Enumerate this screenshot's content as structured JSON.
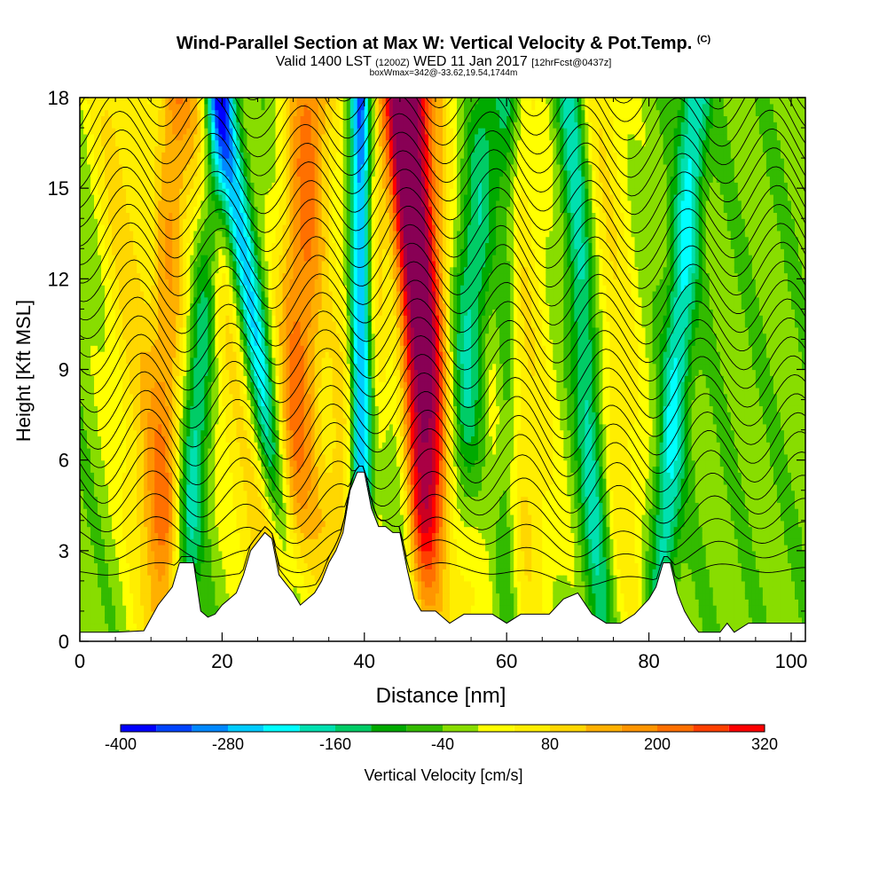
{
  "header": {
    "title_main": "Wind-Parallel Section at Max W: Vertical Velocity & Pot.Temp.",
    "title_tag": "(C)",
    "subtitle_a": "Valid 1400 LST",
    "subtitle_b": "(1200Z)",
    "subtitle_c": "WED 11 Jan 2017",
    "subtitle_d": "[12hrFcst@0437z]",
    "box_line": "boxWmax=342@-33.62,19.54,1744m"
  },
  "chart_data": {
    "type": "heatmap",
    "title": "Wind-Parallel Section at Max W: Vertical Velocity & Pot.Temp.",
    "xlabel": "Distance [nm]",
    "ylabel": "Height [Kft MSL]",
    "xlim": [
      0,
      102
    ],
    "ylim": [
      0,
      18
    ],
    "x_ticks": [
      "0",
      "20",
      "40",
      "60",
      "80",
      "100"
    ],
    "y_ticks": [
      "0",
      "3",
      "6",
      "9",
      "12",
      "15",
      "18"
    ],
    "x_tick_values": [
      0,
      20,
      40,
      60,
      80,
      100
    ],
    "y_tick_values": [
      0,
      3,
      6,
      9,
      12,
      15,
      18
    ],
    "colorbar": {
      "label": "Vertical Velocity [cm/s]",
      "min": -400,
      "max": 320,
      "step": 40,
      "tick_labels": [
        "-400",
        "-280",
        "-160",
        "-40",
        "80",
        "200",
        "320"
      ],
      "tick_values": [
        -400,
        -280,
        -160,
        -40,
        80,
        200,
        320
      ],
      "colors": [
        "#0000ff",
        "#0044ff",
        "#0088ff",
        "#00ccff",
        "#00ffff",
        "#00e0b0",
        "#00cc66",
        "#00aa00",
        "#33bb00",
        "#88dd00",
        "#ffff00",
        "#ffee00",
        "#ffd700",
        "#ffb000",
        "#ff9500",
        "#ff7000",
        "#ff4000",
        "#ff0000",
        "#cc0022",
        "#aa0044",
        "#880055"
      ]
    },
    "terrain": [
      [
        0,
        0.3
      ],
      [
        5,
        0.3
      ],
      [
        9,
        0.35
      ],
      [
        11,
        1.2
      ],
      [
        13,
        1.8
      ],
      [
        14,
        2.6
      ],
      [
        16,
        2.6
      ],
      [
        17,
        1.0
      ],
      [
        18,
        0.8
      ],
      [
        19,
        0.9
      ],
      [
        20,
        1.2
      ],
      [
        22,
        1.6
      ],
      [
        23,
        2.2
      ],
      [
        24,
        3.0
      ],
      [
        26,
        3.6
      ],
      [
        27,
        3.4
      ],
      [
        28,
        2.2
      ],
      [
        30,
        1.6
      ],
      [
        31,
        1.2
      ],
      [
        32,
        1.4
      ],
      [
        33,
        1.6
      ],
      [
        34,
        2.0
      ],
      [
        35,
        2.6
      ],
      [
        36,
        3.0
      ],
      [
        37,
        3.6
      ],
      [
        38,
        5.0
      ],
      [
        39,
        5.6
      ],
      [
        40,
        5.6
      ],
      [
        41,
        4.4
      ],
      [
        42,
        3.8
      ],
      [
        43,
        3.8
      ],
      [
        44,
        3.6
      ],
      [
        45,
        3.6
      ],
      [
        46,
        2.4
      ],
      [
        47,
        1.4
      ],
      [
        48,
        1.0
      ],
      [
        50,
        1.0
      ],
      [
        52,
        0.6
      ],
      [
        54,
        0.9
      ],
      [
        56,
        0.9
      ],
      [
        58,
        0.9
      ],
      [
        60,
        0.6
      ],
      [
        62,
        0.9
      ],
      [
        64,
        0.9
      ],
      [
        66,
        0.9
      ],
      [
        68,
        1.4
      ],
      [
        70,
        1.6
      ],
      [
        72,
        0.9
      ],
      [
        74,
        0.6
      ],
      [
        76,
        0.6
      ],
      [
        78,
        0.9
      ],
      [
        80,
        1.4
      ],
      [
        81,
        1.8
      ],
      [
        82,
        2.6
      ],
      [
        83,
        2.6
      ],
      [
        84,
        1.6
      ],
      [
        85,
        1.0
      ],
      [
        86,
        0.6
      ],
      [
        87,
        0.3
      ],
      [
        90,
        0.3
      ],
      [
        91,
        0.6
      ],
      [
        92,
        0.3
      ],
      [
        94,
        0.6
      ],
      [
        101,
        0.6
      ]
    ],
    "updraft_bands": [
      {
        "x_base": 9,
        "slope": -0.35,
        "width": 4,
        "value": 120
      },
      {
        "x_base": 12,
        "slope": 0.1,
        "width": 2.5,
        "value": 160
      },
      {
        "x_base": 23,
        "slope": -0.6,
        "width": 3.5,
        "value": 120
      },
      {
        "x_base": 30,
        "slope": 0.2,
        "width": 3.5,
        "value": 240
      },
      {
        "x_base": 38,
        "slope": 0.4,
        "width": 4,
        "value": 160
      },
      {
        "x_base": 48,
        "slope": -0.1,
        "width": 4,
        "value": 300
      },
      {
        "x_base": 50,
        "slope": -0.45,
        "width": 3.5,
        "value": 200
      },
      {
        "x_base": 62,
        "slope": -0.2,
        "width": 5,
        "value": 120
      },
      {
        "x_base": 76,
        "slope": -0.25,
        "width": 4,
        "value": 100
      }
    ],
    "downdraft_bands": [
      {
        "x_base": 16,
        "slope": 0.3,
        "width": 2,
        "value": -160
      },
      {
        "x_base": 27,
        "slope": -0.6,
        "width": 2,
        "value": -240
      },
      {
        "x_base": 39.5,
        "slope": 0.0,
        "width": 1.6,
        "value": -400
      },
      {
        "x_base": 45,
        "slope": -0.2,
        "width": 2,
        "value": -160
      },
      {
        "x_base": 53,
        "slope": 0.4,
        "width": 3,
        "value": -180
      },
      {
        "x_base": 60,
        "slope": 0.0,
        "width": 1.6,
        "value": -120
      },
      {
        "x_base": 72,
        "slope": -0.25,
        "width": 2,
        "value": -180
      },
      {
        "x_base": 83,
        "slope": 0.3,
        "width": 2,
        "value": -180
      }
    ]
  }
}
